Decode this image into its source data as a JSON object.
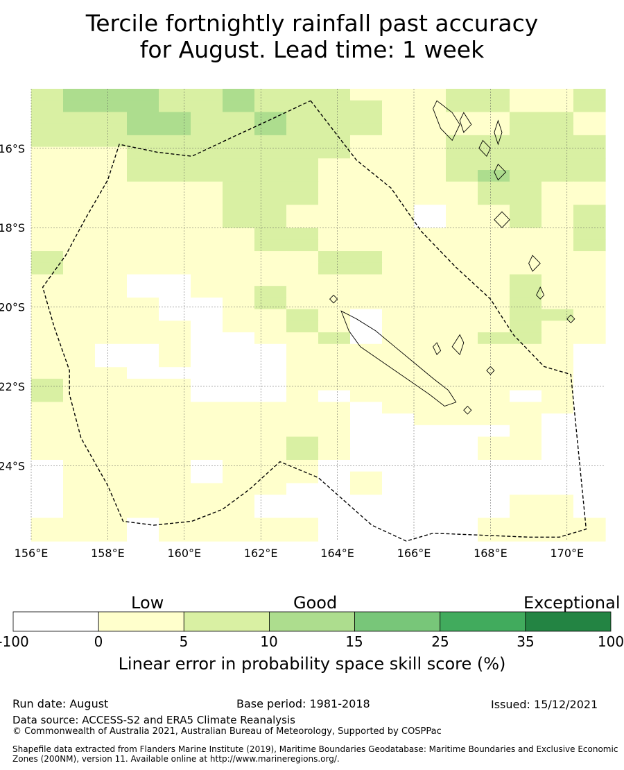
{
  "title": {
    "line1": "Tercile fortnightly rainfall past accuracy",
    "line2": "for August. Lead time: 1 week"
  },
  "map": {
    "lat_labels": [
      "16°S",
      "18°S",
      "20°S",
      "22°S",
      "24°S"
    ],
    "lon_labels": [
      "156°E",
      "158°E",
      "160°E",
      "162°E",
      "164°E",
      "166°E",
      "168°E",
      "170°E"
    ],
    "lon_range": [
      156,
      171
    ],
    "lat_range": [
      -25.9,
      -14.5
    ],
    "grid": "on",
    "boundary_style": "dashed"
  },
  "colorbar": {
    "categories": [
      "Low",
      "Good",
      "Exceptional"
    ],
    "ticks": [
      "-100",
      "0",
      "5",
      "10",
      "15",
      "25",
      "35",
      "100"
    ],
    "colors": [
      "#ffffff",
      "#ffffcc",
      "#d9f0a3",
      "#addd8e",
      "#78c679",
      "#41ab5d",
      "#238443"
    ],
    "label": "Linear error in probability space skill score (%)"
  },
  "footer": {
    "run_date": "Run date: August",
    "base_period": "Base period: 1981-2018",
    "issued": "Issued: 15/12/2021",
    "data_source": "Data source: ACCESS-S2 and ERA5 Climate Reanalysis",
    "copyright": "© Commonwealth of Australia 2021, Australian Bureau of Meteorology, Supported by COSPPac",
    "shapefile": "Shapefile data extracted from Flanders Marine Institute (2019), Maritime Boundaries Geodatabase: Maritime Boundaries and Exclusive Economic Zones (200NM), version 11. Available online at http://www.marineregions.org/."
  },
  "skill_grid": [
    [
      2,
      3,
      3,
      3,
      2,
      2,
      3,
      2,
      2,
      2,
      1,
      1,
      1,
      2,
      2,
      1,
      1,
      2
    ],
    [
      2,
      3,
      3,
      3,
      2,
      2,
      3,
      2,
      2,
      2,
      2,
      1,
      1,
      2,
      2,
      1,
      1,
      2
    ],
    [
      2,
      2,
      2,
      3,
      3,
      2,
      2,
      3,
      2,
      2,
      2,
      1,
      1,
      1,
      1,
      2,
      2,
      1
    ],
    [
      2,
      2,
      2,
      3,
      3,
      2,
      2,
      3,
      2,
      2,
      2,
      1,
      1,
      1,
      1,
      2,
      2,
      1
    ],
    [
      2,
      2,
      2,
      2,
      2,
      2,
      2,
      2,
      2,
      2,
      1,
      1,
      1,
      2,
      2,
      2,
      2,
      2
    ],
    [
      1,
      1,
      1,
      2,
      2,
      2,
      2,
      2,
      2,
      2,
      1,
      1,
      1,
      2,
      2,
      2,
      2,
      2
    ],
    [
      1,
      1,
      1,
      2,
      2,
      2,
      2,
      2,
      2,
      1,
      1,
      1,
      1,
      2,
      2,
      2,
      2,
      2
    ],
    [
      1,
      1,
      1,
      2,
      2,
      2,
      2,
      2,
      2,
      1,
      1,
      1,
      1,
      2,
      3,
      2,
      2,
      2
    ],
    [
      1,
      1,
      1,
      1,
      1,
      1,
      2,
      2,
      2,
      1,
      1,
      1,
      1,
      1,
      2,
      2,
      1,
      1
    ],
    [
      1,
      1,
      1,
      1,
      1,
      1,
      2,
      2,
      2,
      1,
      1,
      1,
      1,
      1,
      2,
      2,
      1,
      1
    ],
    [
      1,
      1,
      1,
      1,
      1,
      1,
      2,
      2,
      1,
      1,
      1,
      1,
      0,
      1,
      1,
      2,
      1,
      2
    ],
    [
      1,
      1,
      1,
      1,
      1,
      1,
      2,
      2,
      1,
      1,
      1,
      1,
      0,
      1,
      1,
      2,
      1,
      2
    ],
    [
      1,
      1,
      1,
      1,
      1,
      1,
      1,
      2,
      2,
      1,
      1,
      1,
      1,
      1,
      1,
      1,
      1,
      2
    ],
    [
      1,
      1,
      1,
      1,
      1,
      1,
      1,
      2,
      2,
      1,
      1,
      1,
      1,
      1,
      1,
      1,
      1,
      2
    ],
    [
      2,
      1,
      1,
      1,
      1,
      1,
      1,
      1,
      1,
      2,
      2,
      1,
      1,
      1,
      1,
      1,
      1,
      1
    ],
    [
      2,
      1,
      1,
      1,
      1,
      1,
      1,
      1,
      1,
      2,
      2,
      1,
      1,
      1,
      1,
      1,
      1,
      1
    ],
    [
      1,
      1,
      1,
      0,
      0,
      1,
      1,
      1,
      1,
      1,
      1,
      1,
      1,
      1,
      1,
      2,
      1,
      1
    ],
    [
      1,
      1,
      1,
      0,
      0,
      1,
      1,
      2,
      1,
      1,
      1,
      1,
      1,
      1,
      1,
      2,
      1,
      1
    ],
    [
      1,
      1,
      1,
      1,
      0,
      0,
      1,
      2,
      1,
      1,
      1,
      1,
      1,
      1,
      1,
      2,
      1,
      1
    ],
    [
      1,
      1,
      1,
      1,
      0,
      0,
      1,
      1,
      2,
      1,
      0,
      1,
      1,
      1,
      1,
      2,
      2,
      1
    ],
    [
      1,
      1,
      1,
      1,
      1,
      0,
      1,
      1,
      2,
      1,
      0,
      1,
      1,
      1,
      1,
      2,
      1,
      1
    ],
    [
      1,
      1,
      1,
      1,
      1,
      0,
      0,
      1,
      1,
      2,
      0,
      1,
      1,
      1,
      2,
      2,
      1,
      1
    ],
    [
      1,
      1,
      0,
      0,
      1,
      0,
      0,
      0,
      1,
      1,
      1,
      1,
      1,
      1,
      1,
      1,
      1,
      0
    ],
    [
      1,
      1,
      0,
      0,
      1,
      0,
      0,
      0,
      1,
      1,
      1,
      1,
      1,
      1,
      1,
      1,
      1,
      0
    ],
    [
      1,
      1,
      1,
      0,
      0,
      0,
      0,
      0,
      1,
      1,
      1,
      1,
      1,
      1,
      1,
      1,
      1,
      0
    ],
    [
      2,
      1,
      1,
      1,
      1,
      0,
      0,
      0,
      1,
      1,
      1,
      1,
      1,
      1,
      1,
      1,
      1,
      0
    ],
    [
      2,
      1,
      1,
      1,
      1,
      0,
      0,
      0,
      1,
      0,
      1,
      1,
      1,
      1,
      1,
      0,
      1,
      0
    ],
    [
      1,
      1,
      1,
      1,
      1,
      1,
      1,
      1,
      1,
      1,
      0,
      1,
      1,
      1,
      1,
      1,
      1,
      0
    ],
    [
      1,
      1,
      1,
      1,
      1,
      1,
      1,
      1,
      1,
      1,
      0,
      0,
      1,
      1,
      1,
      1,
      0,
      0
    ],
    [
      1,
      1,
      1,
      1,
      1,
      1,
      1,
      1,
      1,
      1,
      0,
      0,
      0,
      0,
      0,
      1,
      0,
      0
    ],
    [
      1,
      1,
      1,
      1,
      1,
      1,
      1,
      1,
      2,
      1,
      0,
      0,
      0,
      0,
      1,
      1,
      0,
      0
    ],
    [
      1,
      1,
      1,
      1,
      1,
      1,
      1,
      1,
      2,
      1,
      0,
      0,
      0,
      0,
      1,
      1,
      0,
      0
    ],
    [
      0,
      1,
      1,
      1,
      1,
      0,
      1,
      1,
      1,
      0,
      0,
      0,
      0,
      0,
      0,
      0,
      0,
      0
    ],
    [
      0,
      1,
      1,
      1,
      1,
      0,
      1,
      1,
      1,
      0,
      1,
      0,
      0,
      0,
      0,
      0,
      0,
      0
    ],
    [
      0,
      1,
      1,
      1,
      1,
      1,
      1,
      1,
      0,
      0,
      1,
      0,
      0,
      0,
      0,
      0,
      0,
      0
    ],
    [
      0,
      1,
      1,
      1,
      1,
      1,
      1,
      0,
      0,
      0,
      0,
      0,
      0,
      0,
      0,
      1,
      1,
      0
    ],
    [
      0,
      1,
      1,
      1,
      1,
      1,
      1,
      0,
      0,
      0,
      0,
      0,
      0,
      0,
      0,
      1,
      1,
      0
    ],
    [
      1,
      1,
      1,
      0,
      1,
      1,
      1,
      1,
      1,
      0,
      0,
      0,
      0,
      0,
      1,
      1,
      1,
      1
    ],
    [
      1,
      1,
      1,
      0,
      1,
      1,
      1,
      1,
      1,
      0,
      0,
      0,
      0,
      0,
      1,
      1,
      1,
      1
    ]
  ],
  "eez_boundary": [
    [
      163.3,
      -14.8
    ],
    [
      164.5,
      -16.3
    ],
    [
      165.4,
      -17.0
    ],
    [
      166.2,
      -18.1
    ],
    [
      167.1,
      -19.0
    ],
    [
      168.0,
      -19.8
    ],
    [
      168.6,
      -20.7
    ],
    [
      169.4,
      -21.5
    ],
    [
      170.1,
      -21.7
    ],
    [
      170.5,
      -25.6
    ],
    [
      169.8,
      -25.8
    ],
    [
      169.0,
      -25.8
    ],
    [
      166.5,
      -25.7
    ],
    [
      165.8,
      -25.9
    ],
    [
      164.9,
      -25.5
    ],
    [
      164.2,
      -24.9
    ],
    [
      163.5,
      -24.3
    ],
    [
      162.5,
      -23.9
    ],
    [
      161.7,
      -24.6
    ],
    [
      161.0,
      -25.1
    ],
    [
      160.2,
      -25.4
    ],
    [
      159.2,
      -25.5
    ],
    [
      158.4,
      -25.4
    ],
    [
      158.0,
      -24.5
    ],
    [
      157.3,
      -23.3
    ],
    [
      157.0,
      -22.2
    ],
    [
      157.0,
      -21.6
    ],
    [
      156.6,
      -20.5
    ],
    [
      156.3,
      -19.5
    ],
    [
      156.9,
      -18.7
    ],
    [
      157.4,
      -17.8
    ],
    [
      158.0,
      -16.8
    ],
    [
      158.3,
      -15.9
    ],
    [
      159.3,
      -16.1
    ],
    [
      160.2,
      -16.2
    ],
    [
      161.3,
      -15.7
    ],
    [
      162.2,
      -15.3
    ],
    [
      163.3,
      -14.8
    ]
  ],
  "coastlines": [
    [
      [
        164.1,
        -20.1
      ],
      [
        164.5,
        -20.3
      ],
      [
        165.0,
        -20.6
      ],
      [
        165.5,
        -21.0
      ],
      [
        166.0,
        -21.4
      ],
      [
        166.5,
        -21.8
      ],
      [
        166.9,
        -22.1
      ],
      [
        167.1,
        -22.4
      ],
      [
        166.8,
        -22.5
      ],
      [
        166.4,
        -22.2
      ],
      [
        165.8,
        -21.8
      ],
      [
        165.2,
        -21.4
      ],
      [
        164.6,
        -21.0
      ],
      [
        164.3,
        -20.6
      ],
      [
        164.1,
        -20.1
      ]
    ],
    [
      [
        167.2,
        -20.7
      ],
      [
        167.3,
        -20.9
      ],
      [
        167.2,
        -21.2
      ],
      [
        167.0,
        -21.0
      ],
      [
        167.2,
        -20.7
      ]
    ],
    [
      [
        168.0,
        -21.5
      ],
      [
        168.1,
        -21.6
      ],
      [
        168.0,
        -21.7
      ],
      [
        167.9,
        -21.6
      ],
      [
        168.0,
        -21.5
      ]
    ],
    [
      [
        166.6,
        -20.9
      ],
      [
        166.7,
        -21.1
      ],
      [
        166.6,
        -21.2
      ],
      [
        166.5,
        -21.0
      ],
      [
        166.6,
        -20.9
      ]
    ],
    [
      [
        167.4,
        -22.5
      ],
      [
        167.5,
        -22.6
      ],
      [
        167.4,
        -22.7
      ],
      [
        167.3,
        -22.6
      ],
      [
        167.4,
        -22.5
      ]
    ],
    [
      [
        163.9,
        -19.7
      ],
      [
        164.0,
        -19.8
      ],
      [
        163.9,
        -19.9
      ],
      [
        163.8,
        -19.8
      ],
      [
        163.9,
        -19.7
      ]
    ],
    [
      [
        166.6,
        -14.8
      ],
      [
        167.0,
        -15.1
      ],
      [
        167.2,
        -15.4
      ],
      [
        167.0,
        -15.8
      ],
      [
        166.7,
        -15.5
      ],
      [
        166.5,
        -15.0
      ],
      [
        166.6,
        -14.8
      ]
    ],
    [
      [
        167.3,
        -15.1
      ],
      [
        167.5,
        -15.4
      ],
      [
        167.3,
        -15.6
      ],
      [
        167.2,
        -15.3
      ],
      [
        167.3,
        -15.1
      ]
    ],
    [
      [
        167.8,
        -15.8
      ],
      [
        168.0,
        -16.0
      ],
      [
        167.9,
        -16.2
      ],
      [
        167.7,
        -16.0
      ],
      [
        167.8,
        -15.8
      ]
    ],
    [
      [
        168.2,
        -15.3
      ],
      [
        168.3,
        -15.6
      ],
      [
        168.2,
        -15.9
      ],
      [
        168.1,
        -15.6
      ],
      [
        168.2,
        -15.3
      ]
    ],
    [
      [
        168.2,
        -16.4
      ],
      [
        168.4,
        -16.6
      ],
      [
        168.2,
        -16.8
      ],
      [
        168.1,
        -16.6
      ],
      [
        168.2,
        -16.4
      ]
    ],
    [
      [
        168.3,
        -17.6
      ],
      [
        168.5,
        -17.8
      ],
      [
        168.3,
        -18.0
      ],
      [
        168.1,
        -17.8
      ],
      [
        168.3,
        -17.6
      ]
    ],
    [
      [
        169.1,
        -18.7
      ],
      [
        169.3,
        -18.9
      ],
      [
        169.1,
        -19.1
      ],
      [
        169.0,
        -18.9
      ],
      [
        169.1,
        -18.7
      ]
    ],
    [
      [
        169.3,
        -19.5
      ],
      [
        169.4,
        -19.7
      ],
      [
        169.3,
        -19.8
      ],
      [
        169.2,
        -19.7
      ],
      [
        169.3,
        -19.5
      ]
    ],
    [
      [
        170.1,
        -20.2
      ],
      [
        170.2,
        -20.3
      ],
      [
        170.1,
        -20.4
      ],
      [
        170.0,
        -20.3
      ],
      [
        170.1,
        -20.2
      ]
    ]
  ]
}
